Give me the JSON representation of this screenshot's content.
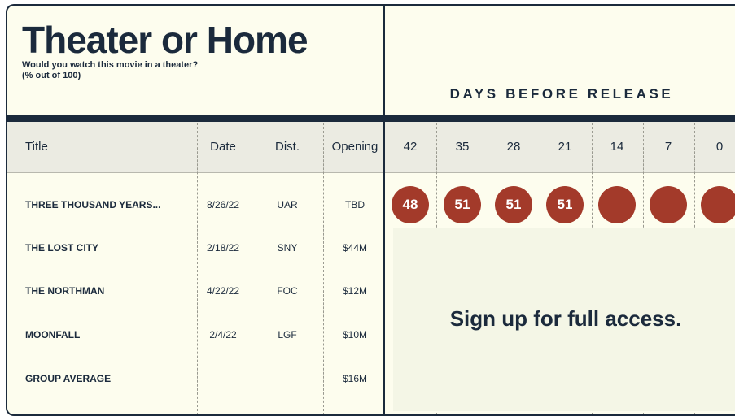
{
  "header": {
    "title": "Theater or Home",
    "subtitle": "Would you watch this movie in a theater?",
    "subtitle_note": "(% out of 100)",
    "section": "DAYS BEFORE RELEASE"
  },
  "table": {
    "columns": [
      "Title",
      "Date",
      "Dist.",
      "Opening"
    ],
    "days": [
      "42",
      "35",
      "28",
      "21",
      "14",
      "7",
      "0"
    ],
    "rows": [
      [
        "THREE THOUSAND YEARS...",
        "8/26/22",
        "UAR",
        "TBD"
      ],
      [
        "THE LOST CITY",
        "2/18/22",
        "SNY",
        "$44M"
      ],
      [
        "THE NORTHMAN",
        "4/22/22",
        "FOC",
        "$12M"
      ],
      [
        "MOONFALL",
        "2/4/22",
        "LGF",
        "$10M"
      ],
      [
        "GROUP AVERAGE",
        null,
        null,
        "$16M"
      ]
    ],
    "scores": [
      48,
      51,
      51,
      51,
      null,
      null,
      null
    ]
  },
  "paywall": "Sign up for full access."
}
